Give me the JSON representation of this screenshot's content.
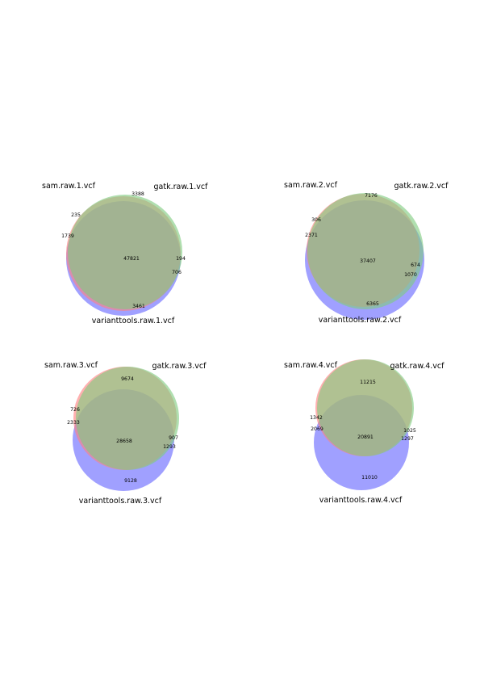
{
  "chart_data": [
    {
      "type": "venn3",
      "sets": [
        "sam.raw.1.vcf",
        "gatk.raw.1.vcf",
        "varianttools.raw.1.vcf"
      ],
      "colors": [
        "#ff8080",
        "#80cc80",
        "#8080ff"
      ],
      "regions": [
        {
          "sets": "100",
          "value": 235
        },
        {
          "sets": "010",
          "value": 194
        },
        {
          "sets": "001",
          "value": 3461
        },
        {
          "sets": "110",
          "value": 3388
        },
        {
          "sets": "101",
          "value": 1739
        },
        {
          "sets": "011",
          "value": 706
        },
        {
          "sets": "111",
          "value": 47821
        }
      ]
    },
    {
      "type": "venn3",
      "sets": [
        "sam.raw.2.vcf",
        "gatk.raw.2.vcf",
        "varianttools.raw.2.vcf"
      ],
      "colors": [
        "#ff8080",
        "#80cc80",
        "#8080ff"
      ],
      "regions": [
        {
          "sets": "100",
          "value": 306
        },
        {
          "sets": "010",
          "value": 674
        },
        {
          "sets": "001",
          "value": 6365
        },
        {
          "sets": "110",
          "value": 7176
        },
        {
          "sets": "101",
          "value": 2371
        },
        {
          "sets": "011",
          "value": 1070
        },
        {
          "sets": "111",
          "value": 37407
        }
      ]
    },
    {
      "type": "venn3",
      "sets": [
        "sam.raw.3.vcf",
        "gatk.raw.3.vcf",
        "varianttools.raw.3.vcf"
      ],
      "colors": [
        "#ff8080",
        "#80cc80",
        "#8080ff"
      ],
      "regions": [
        {
          "sets": "100",
          "value": 726
        },
        {
          "sets": "010",
          "value": 907
        },
        {
          "sets": "001",
          "value": 9128
        },
        {
          "sets": "110",
          "value": 9674
        },
        {
          "sets": "101",
          "value": 2333
        },
        {
          "sets": "011",
          "value": 1293
        },
        {
          "sets": "111",
          "value": 28658
        }
      ]
    },
    {
      "type": "venn3",
      "sets": [
        "sam.raw.4.vcf",
        "gatk.raw.4.vcf",
        "varianttools.raw.4.vcf"
      ],
      "colors": [
        "#ff8080",
        "#80cc80",
        "#8080ff"
      ],
      "regions": [
        {
          "sets": "100",
          "value": 1342
        },
        {
          "sets": "010",
          "value": 1025
        },
        {
          "sets": "001",
          "value": 11010
        },
        {
          "sets": "110",
          "value": 11215
        },
        {
          "sets": "101",
          "value": 2069
        },
        {
          "sets": "011",
          "value": 1297
        },
        {
          "sets": "111",
          "value": 20891
        }
      ]
    }
  ]
}
